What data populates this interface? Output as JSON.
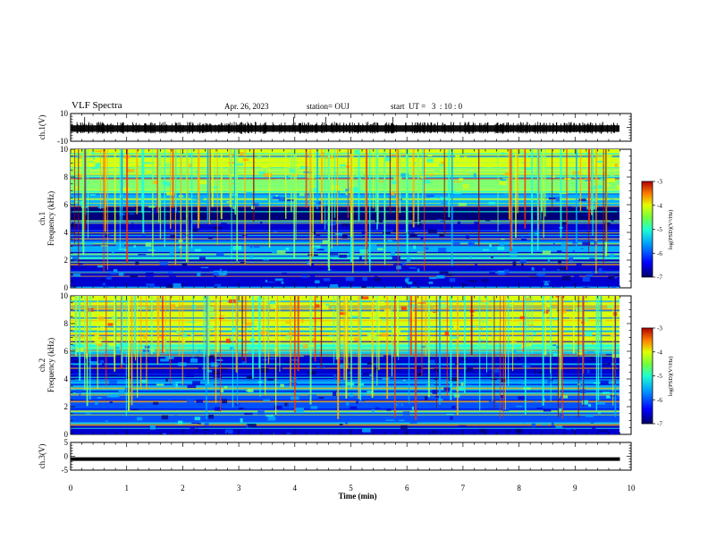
{
  "header": {
    "title": "VLF Spectra",
    "date": "Apr. 26, 2023",
    "station": "station= OUJ",
    "start": "start  UT =   3  : 10 : 0"
  },
  "colors": {
    "colormap": [
      "#00007a",
      "#0000d0",
      "#0050ff",
      "#00b0ff",
      "#20ffd8",
      "#80ff70",
      "#d8ff10",
      "#ffb000",
      "#ff3000",
      "#a00000"
    ]
  },
  "chart_data": [
    {
      "type": "line",
      "name": "ch1-waveform",
      "ylabel": "ch.1(V)",
      "ylim": [
        -10,
        10
      ],
      "y_ticks": [
        "10",
        "-10"
      ],
      "xlim": [
        0,
        10
      ],
      "grid": false,
      "description_values": {
        "baseline_min": -3.2,
        "baseline_max": 1.5,
        "spike_max": 7.5
      }
    },
    {
      "type": "heatmap",
      "name": "ch1-spectrogram",
      "ylabel": "ch.1\nFrequency (kHz)",
      "ylabel_line1": "ch.1",
      "ylabel_line2": "Frequency (kHz)",
      "ylim": [
        0,
        10
      ],
      "y_ticks": [
        "0",
        "2",
        "4",
        "6",
        "8",
        "10"
      ],
      "xlim": [
        0,
        10
      ],
      "colorbar": {
        "label": "log(PSD)(V²/Hz)",
        "range": [
          -7,
          -3
        ],
        "ticks": [
          "-3",
          "-4",
          "-5",
          "-6",
          "-7"
        ]
      },
      "bands_kHz": [
        {
          "from": 0,
          "to": 0.8,
          "level": -6.3
        },
        {
          "from": 0.8,
          "to": 2.6,
          "level": -6.2
        },
        {
          "from": 2.6,
          "to": 3.6,
          "level": -5.5
        },
        {
          "from": 3.6,
          "to": 4.8,
          "level": -6.5
        },
        {
          "from": 4.8,
          "to": 5.9,
          "level": -6.7
        },
        {
          "from": 5.9,
          "to": 6.8,
          "level": -5.6
        },
        {
          "from": 6.8,
          "to": 8.5,
          "level": -4.8
        },
        {
          "from": 8.5,
          "to": 10,
          "level": -4.6
        }
      ]
    },
    {
      "type": "heatmap",
      "name": "ch2-spectrogram",
      "ylabel": "ch.2\nFrequency (kHz)",
      "ylabel_line1": "ch.2",
      "ylabel_line2": "Frequency (kHz)",
      "ylim": [
        0,
        10
      ],
      "y_ticks": [
        "0",
        "2",
        "4",
        "6",
        "8",
        "10"
      ],
      "xlim": [
        0,
        10
      ],
      "colorbar": {
        "label": "log(PSD)(V²/Hz)",
        "range": [
          -7,
          -3
        ],
        "ticks": [
          "-3",
          "-4",
          "-5",
          "-6",
          "-7"
        ]
      },
      "bands_kHz": [
        {
          "from": 0,
          "to": 0.8,
          "level": -6.3
        },
        {
          "from": 0.8,
          "to": 2.8,
          "level": -5.9
        },
        {
          "from": 2.8,
          "to": 4.0,
          "level": -5.6
        },
        {
          "from": 4.0,
          "to": 5.8,
          "level": -6.4
        },
        {
          "from": 5.8,
          "to": 6.5,
          "level": -5.2
        },
        {
          "from": 6.5,
          "to": 8.0,
          "level": -4.5
        },
        {
          "from": 8.0,
          "to": 10,
          "level": -4.3
        }
      ]
    },
    {
      "type": "line",
      "name": "ch3-waveform",
      "ylabel": "ch.3(V)",
      "ylim": [
        -5,
        5
      ],
      "y_ticks": [
        "5",
        "0",
        "-5"
      ],
      "xlim": [
        0,
        10
      ],
      "values_constant": -1.0
    }
  ],
  "xaxis": {
    "label": "Time  (min)",
    "ticks": [
      "0",
      "1",
      "2",
      "3",
      "4",
      "5",
      "6",
      "7",
      "8",
      "9",
      "10"
    ],
    "range": [
      0,
      10
    ]
  }
}
